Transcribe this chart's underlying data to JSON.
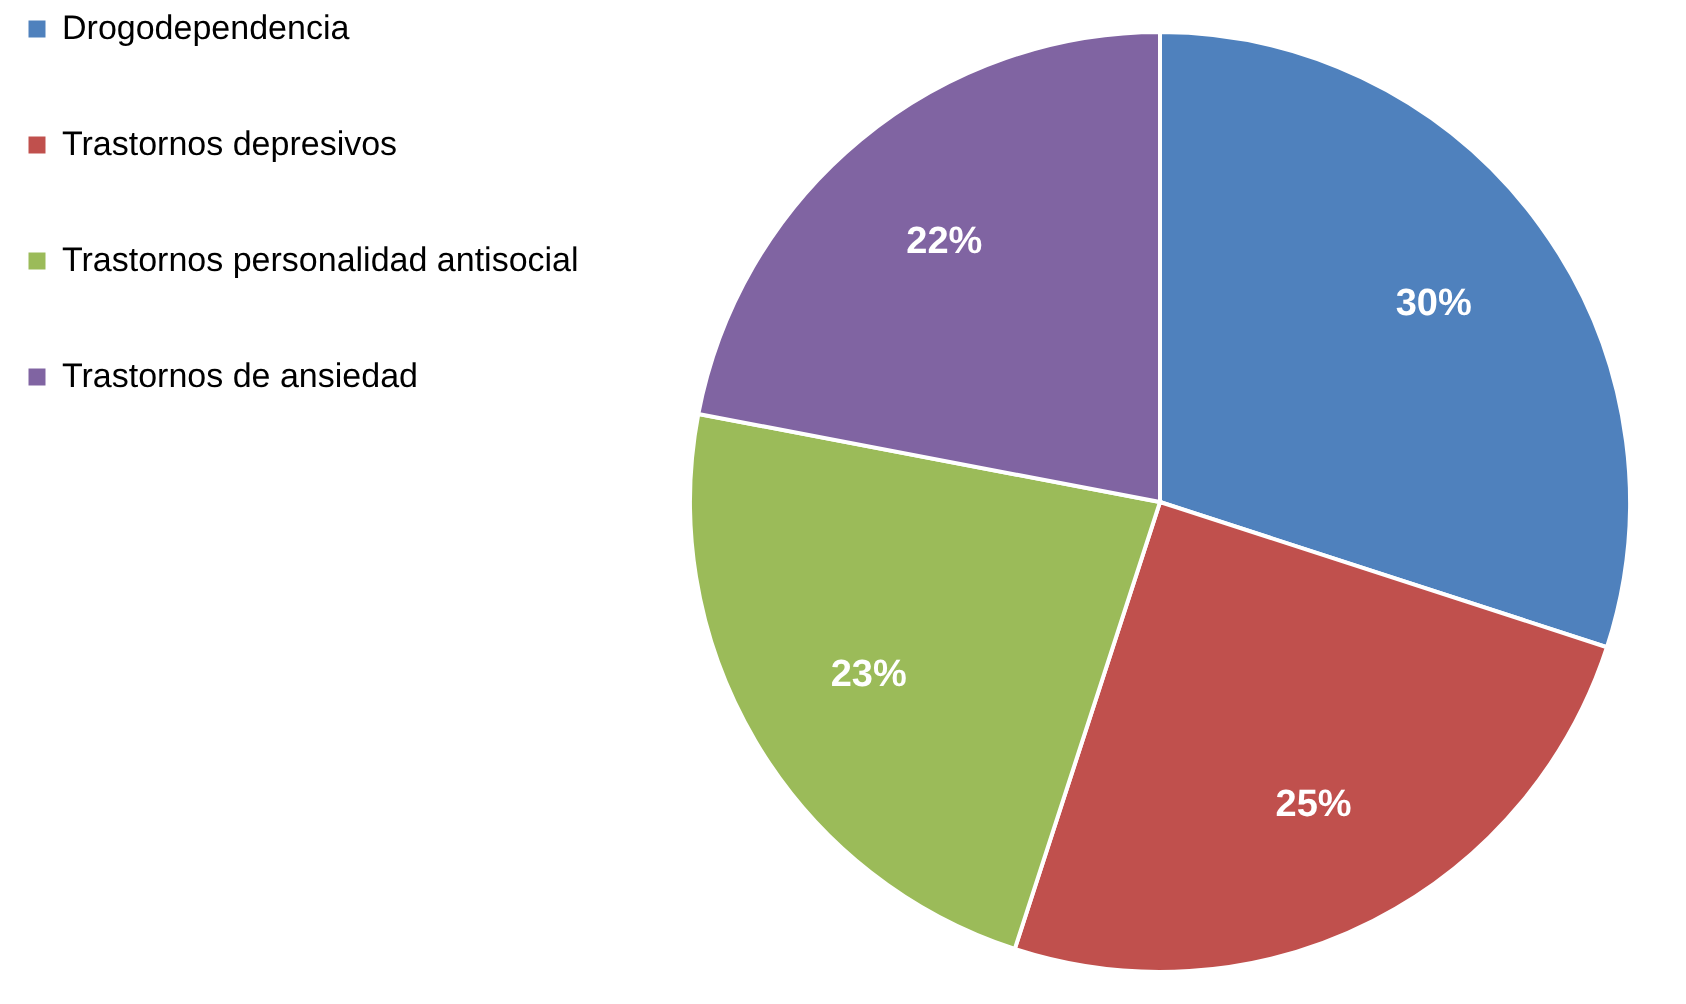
{
  "chart_data": {
    "type": "pie",
    "categories": [
      "Drogodependencia",
      "Trastornos depresivos",
      "Trastornos personalidad antisocial",
      "Trastornos de ansiedad"
    ],
    "values": [
      30,
      25,
      23,
      22
    ],
    "colors": [
      "#4f81bd",
      "#c0504d",
      "#9bbb59",
      "#8064a2"
    ],
    "value_labels": [
      "30%",
      "25%",
      "23%",
      "22%"
    ],
    "legend": "left"
  }
}
